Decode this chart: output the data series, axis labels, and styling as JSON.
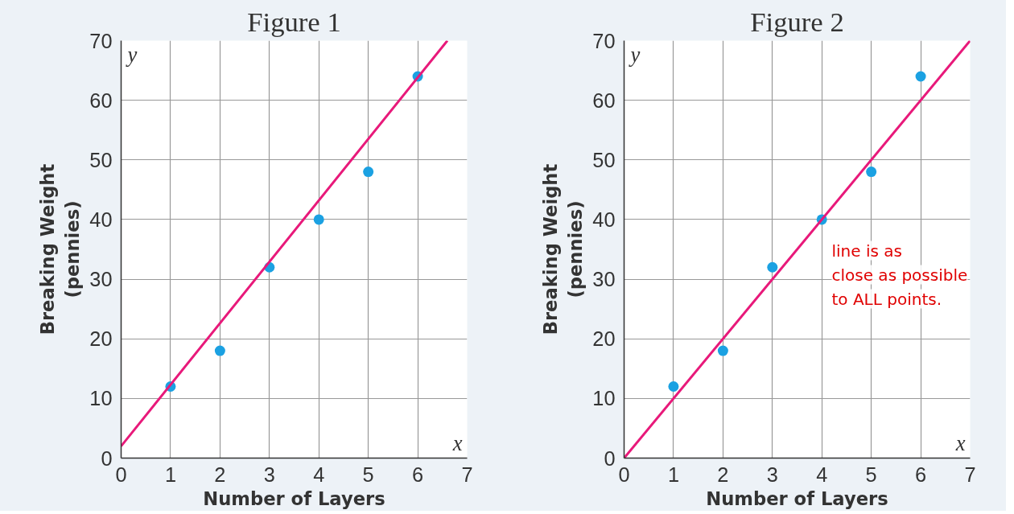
{
  "chart_data": [
    {
      "type": "scatter",
      "title": "Figure 1",
      "xlabel": "Number of Layers",
      "ylabel": "Breaking Weight\n(pennies)",
      "xlim": [
        0,
        7
      ],
      "ylim": [
        0,
        70
      ],
      "xticks": [
        0,
        1,
        2,
        3,
        4,
        5,
        6,
        7
      ],
      "yticks": [
        0,
        10,
        20,
        30,
        40,
        50,
        60,
        70
      ],
      "grid": true,
      "annotations": [
        "x",
        "y"
      ],
      "series": [
        {
          "marker": "circle",
          "color": "#1ba1e2",
          "x": [
            1,
            2,
            3,
            4,
            5,
            6
          ],
          "values": [
            12,
            18,
            32,
            40,
            48,
            64
          ]
        },
        {
          "type": "line",
          "color": "#e8197a",
          "x": [
            0,
            6.6
          ],
          "values": [
            2,
            70
          ]
        }
      ]
    },
    {
      "type": "scatter",
      "title": "Figure 2",
      "xlabel": "Number of Layers",
      "ylabel": "Breaking Weight\n(pennies)",
      "xlim": [
        0,
        7
      ],
      "ylim": [
        0,
        70
      ],
      "xticks": [
        0,
        1,
        2,
        3,
        4,
        5,
        6,
        7
      ],
      "yticks": [
        0,
        10,
        20,
        30,
        40,
        50,
        60,
        70
      ],
      "grid": true,
      "annotations": [
        "x",
        "y",
        "line is as\nclose as possible\nto ALL points."
      ],
      "series": [
        {
          "marker": "circle",
          "color": "#1ba1e2",
          "x": [
            1,
            2,
            3,
            4,
            5,
            6
          ],
          "values": [
            12,
            18,
            32,
            40,
            48,
            64
          ]
        },
        {
          "type": "line",
          "color": "#e8197a",
          "x": [
            0,
            7
          ],
          "values": [
            0,
            70
          ]
        }
      ]
    }
  ]
}
